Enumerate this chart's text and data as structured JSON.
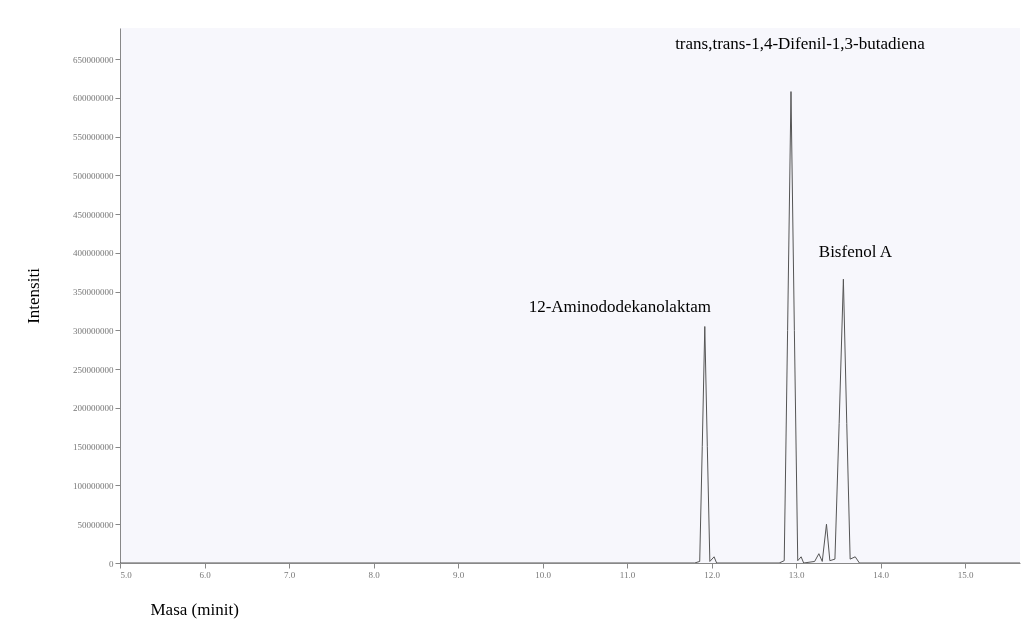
{
  "chart_data": {
    "type": "line",
    "xlabel": "Masa (minit)",
    "ylabel": "Intensiti",
    "x": [
      5.0,
      11.8,
      11.86,
      11.89,
      11.92,
      11.95,
      11.98,
      12.03,
      12.06,
      12.8,
      12.86,
      12.9,
      12.94,
      12.98,
      13.02,
      13.06,
      13.09,
      13.22,
      13.27,
      13.31,
      13.36,
      13.4,
      13.46,
      13.51,
      13.56,
      13.6,
      13.64,
      13.7,
      13.75,
      15.65
    ],
    "series": [
      {
        "color": "#555555",
        "values": [
          0,
          0,
          2000000,
          150000000,
          305000000,
          150000000,
          2000000,
          8000000,
          0,
          0,
          3000000,
          300000000,
          608000000,
          300000000,
          3000000,
          8000000,
          0,
          2000000,
          12000000,
          2000000,
          50000000,
          3000000,
          5000000,
          180000000,
          366000000,
          180000000,
          5000000,
          8000000,
          0,
          0
        ]
      }
    ],
    "xlim": [
      5.0,
      15.65
    ],
    "xticks": [
      {
        "value": 5,
        "label": "5.0"
      },
      {
        "value": 6,
        "label": "6.0"
      },
      {
        "value": 7,
        "label": "7.0"
      },
      {
        "value": 8,
        "label": "8.0"
      },
      {
        "value": 9,
        "label": "9.0"
      },
      {
        "value": 10,
        "label": "10.0"
      },
      {
        "value": 11,
        "label": "11.0"
      },
      {
        "value": 12,
        "label": "12.0"
      },
      {
        "value": 13,
        "label": "13.0"
      },
      {
        "value": 14,
        "label": "14.0"
      },
      {
        "value": 15,
        "label": "15.0"
      }
    ],
    "ylim": [
      0,
      690000000
    ],
    "yticks": [
      0,
      50000000,
      100000000,
      150000000,
      200000000,
      250000000,
      300000000,
      350000000,
      400000000,
      450000000,
      500000000,
      550000000,
      600000000,
      650000000
    ],
    "grid": false,
    "legend": false,
    "marker": "none",
    "line_style": "solid",
    "annotations": [
      {
        "text": "12-Aminododekanolaktam",
        "x": 11.92,
        "y": 305000000
      },
      {
        "text": "trans,trans-1,4-Difenil-1,3-butadiena",
        "x": 12.94,
        "y": 608000000
      },
      {
        "text": "Bisfenol A",
        "x": 13.56,
        "y": 366000000
      }
    ]
  }
}
